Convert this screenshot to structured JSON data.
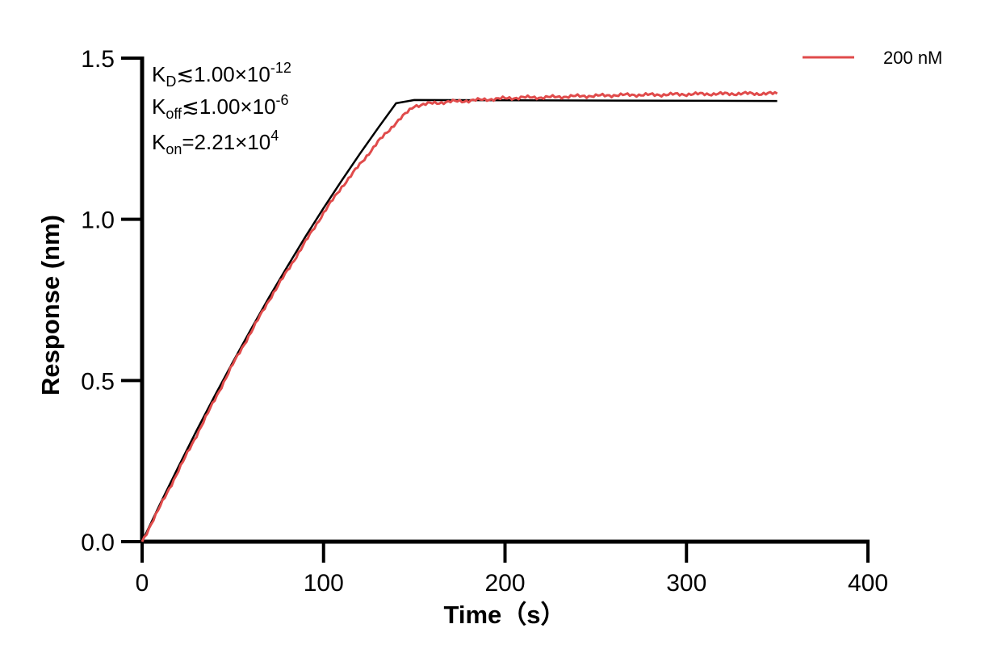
{
  "chart_data": {
    "type": "line",
    "xlabel": "Time（s）",
    "ylabel": "Response (nm)",
    "xlim": [
      0,
      400
    ],
    "ylim": [
      0,
      1.5
    ],
    "x_ticks": [
      "0",
      "100",
      "200",
      "300",
      "400"
    ],
    "y_ticks": [
      "0.0",
      "0.5",
      "1.0",
      "1.5"
    ],
    "grid": false,
    "legend_position": "top-right",
    "annotations": {
      "kd_label": "K",
      "kd_sub": "D",
      "kd_text": "≲1.00×10",
      "kd_exp": "-12",
      "koff_label": "K",
      "koff_sub": "off",
      "koff_text": "≲1.00×10",
      "koff_exp": "-6",
      "kon_label": "K",
      "kon_sub": "on",
      "kon_text": "=2.21×10",
      "kon_exp": "4"
    },
    "series": [
      {
        "name": "200 nM",
        "color": "#e04b4b",
        "x": [
          0,
          10,
          20,
          30,
          40,
          50,
          60,
          70,
          80,
          90,
          100,
          110,
          120,
          130,
          140,
          150,
          160,
          170,
          180,
          190,
          200,
          210,
          220,
          230,
          240,
          250,
          260,
          270,
          280,
          290,
          300,
          310,
          320,
          330,
          340,
          350
        ],
        "y": [
          0.0,
          0.11,
          0.22,
          0.33,
          0.44,
          0.55,
          0.65,
          0.75,
          0.84,
          0.93,
          1.02,
          1.1,
          1.17,
          1.24,
          1.3,
          1.352,
          1.36,
          1.365,
          1.368,
          1.372,
          1.375,
          1.378,
          1.378,
          1.38,
          1.382,
          1.383,
          1.385,
          1.386,
          1.386,
          1.387,
          1.388,
          1.389,
          1.389,
          1.39,
          1.39,
          1.39
        ]
      },
      {
        "color": "#000000",
        "x": [
          0,
          10,
          20,
          30,
          40,
          50,
          60,
          70,
          80,
          90,
          100,
          110,
          120,
          130,
          140,
          150,
          350
        ],
        "y": [
          0.0,
          0.118,
          0.232,
          0.344,
          0.452,
          0.557,
          0.659,
          0.758,
          0.853,
          0.946,
          1.035,
          1.12,
          1.203,
          1.283,
          1.36,
          1.37,
          1.367
        ]
      }
    ]
  }
}
